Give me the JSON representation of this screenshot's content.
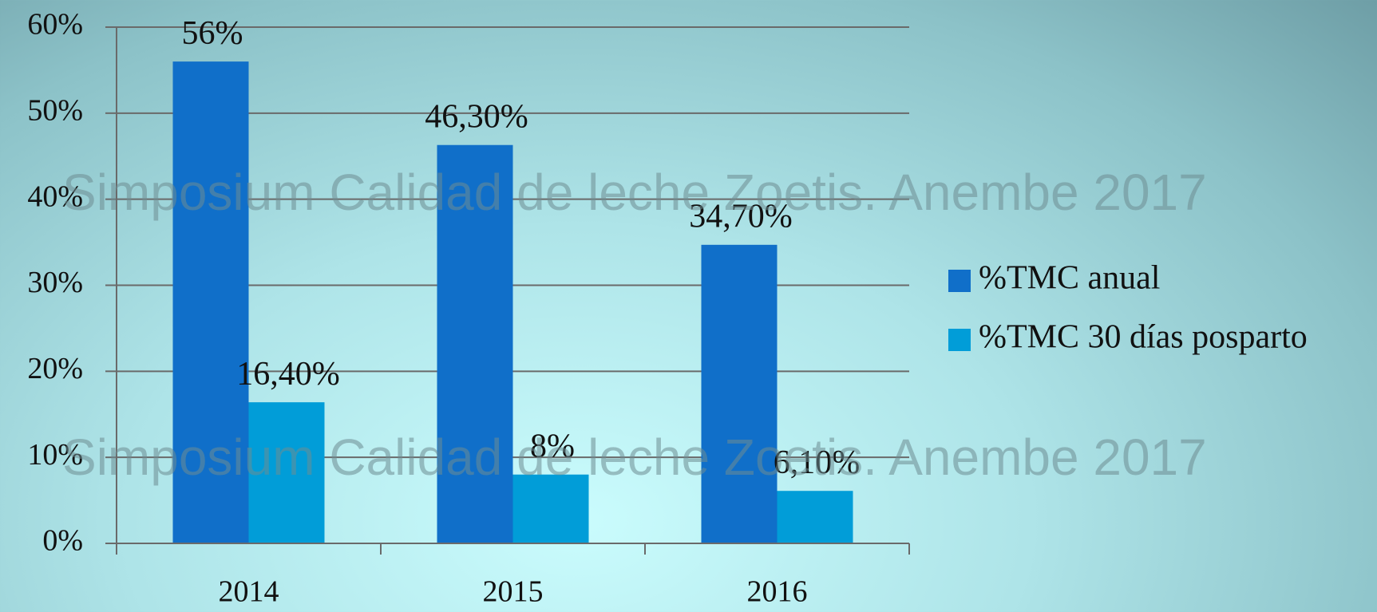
{
  "chart_data": {
    "type": "bar",
    "categories": [
      "2014",
      "2015",
      "2016"
    ],
    "series": [
      {
        "name": "%TMC anual",
        "color": "#106fc9",
        "values": [
          56,
          46.3,
          34.7
        ],
        "value_labels": [
          "56%",
          "46,30%",
          "34,70%"
        ]
      },
      {
        "name": "%TMC 30 días posparto",
        "color": "#019dd8",
        "values": [
          16.4,
          8,
          6.1
        ],
        "value_labels": [
          "16,40%",
          "8%",
          "6,10%"
        ]
      }
    ],
    "ylim": [
      0,
      60
    ],
    "yticks": [
      {
        "value": 0,
        "label": "0%"
      },
      {
        "value": 10,
        "label": "10%"
      },
      {
        "value": 20,
        "label": "20%"
      },
      {
        "value": 30,
        "label": "30%"
      },
      {
        "value": 40,
        "label": "40%"
      },
      {
        "value": 50,
        "label": "50%"
      },
      {
        "value": 60,
        "label": "60%"
      }
    ],
    "grid": true,
    "legend": "right",
    "watermarks": [
      "Simposium Calidad de leche Zoetis. Anembe 2017",
      "Simposium Calidad de leche Zoetis. Anembe 2017"
    ]
  }
}
